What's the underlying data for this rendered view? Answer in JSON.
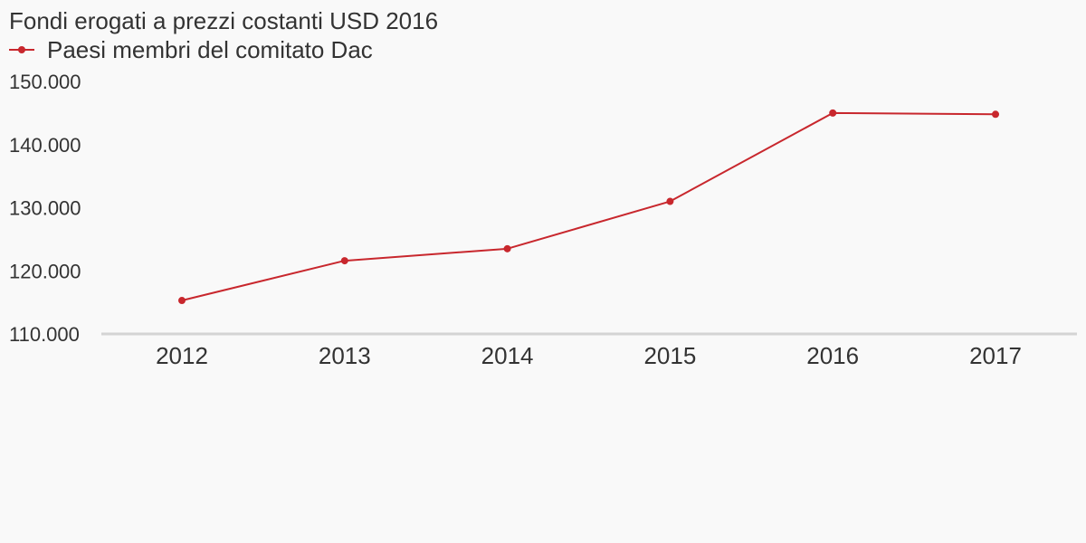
{
  "chart_data": {
    "type": "line",
    "title": "Fondi erogati a prezzi costanti USD 2016",
    "xlabel": "",
    "ylabel": "",
    "categories": [
      "2012",
      "2013",
      "2014",
      "2015",
      "2016",
      "2017"
    ],
    "series": [
      {
        "name": "Paesi membri del comitato Dac",
        "values": [
          115300,
          121600,
          123500,
          131000,
          145000,
          144800
        ]
      }
    ],
    "ylim": [
      110000,
      150000
    ],
    "yticks": [
      110000,
      120000,
      130000,
      140000,
      150000
    ],
    "ytick_labels": [
      "110.000",
      "120.000",
      "130.000",
      "140.000",
      "150.000"
    ],
    "grid": false,
    "legend_position": "top-left",
    "colors": {
      "series": "#c8272d",
      "axis": "#d4d4d4",
      "text": "#333333",
      "background": "#f9f9f9"
    }
  }
}
